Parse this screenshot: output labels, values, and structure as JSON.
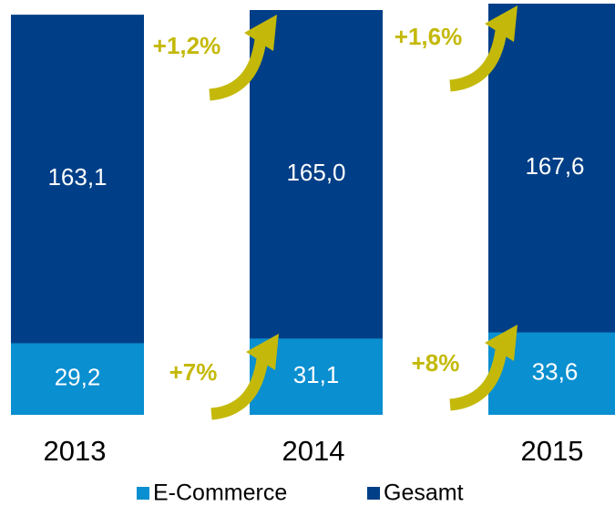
{
  "chart_data": {
    "type": "bar",
    "categories": [
      "2013",
      "2014",
      "2015"
    ],
    "series": [
      {
        "name": "Gesamt",
        "color": "#003f87",
        "values": [
          163.1,
          165.0,
          167.6
        ],
        "value_labels": [
          "163,1",
          "165,0",
          "167,6"
        ]
      },
      {
        "name": "E-Commerce",
        "color": "#0a8fd0",
        "values": [
          29.2,
          31.1,
          33.6
        ],
        "value_labels": [
          "29,2",
          "31,1",
          "33,6"
        ]
      }
    ],
    "annotations": [
      "+1,2%",
      "+1,6%",
      "+7%",
      "+8%"
    ],
    "annotation_color": "#c4b90a"
  }
}
